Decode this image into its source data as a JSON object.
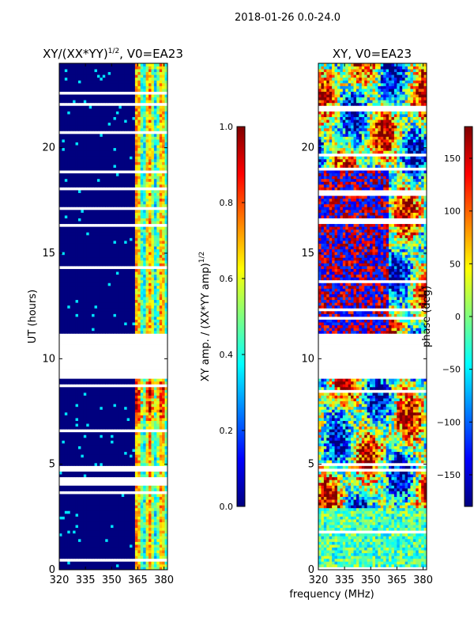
{
  "suptitle": "2018-01-26 0.0-24.0",
  "colors": {
    "jet": [
      "#00007f",
      "#0000ff",
      "#007fff",
      "#00ffff",
      "#7fff7f",
      "#ffff00",
      "#ff7f00",
      "#ff0000",
      "#7f0000"
    ],
    "blank": "#ffffff",
    "frame": "#000000"
  },
  "chart_data": [
    {
      "type": "heatmap",
      "title_main": "XY/(XX*YY)",
      "title_sup": "1/2",
      "title_rest": ", V0=EA23",
      "xlabel": "",
      "ylabel": "UT (hours)",
      "xlim": [
        320,
        382
      ],
      "ylim": [
        0,
        24
      ],
      "xticks": [
        320,
        335,
        350,
        365,
        380
      ],
      "yticks": [
        0,
        5,
        10,
        15,
        20
      ],
      "flagged_gap_hours": [
        9.1,
        11.2
      ],
      "colorbar": {
        "label_main": "XY amp. / (XX*YY amp)",
        "label_sup": "1/2",
        "range": [
          0.0,
          1.0
        ],
        "ticks": [
          "0.0",
          "0.2",
          "0.4",
          "0.6",
          "0.8",
          "1.0"
        ],
        "tick_values": [
          0.0,
          0.2,
          0.4,
          0.6,
          0.8,
          1.0
        ]
      }
    },
    {
      "type": "heatmap",
      "title": "XY, V0=EA23",
      "xlabel": "frequency (MHz)",
      "ylabel": "",
      "xlim": [
        320,
        382
      ],
      "ylim": [
        0,
        24
      ],
      "xticks": [
        320,
        335,
        350,
        365,
        380
      ],
      "yticks": [
        0,
        5,
        10,
        15,
        20
      ],
      "flagged_gap_hours": [
        9.1,
        11.2
      ],
      "colorbar": {
        "label": "phase (deg)",
        "range": [
          -180,
          180
        ],
        "ticks": [
          "150",
          "100",
          "50",
          "0",
          "−50",
          "−100",
          "−150"
        ],
        "tick_values": [
          150,
          100,
          50,
          0,
          -50,
          -100,
          -150
        ]
      }
    }
  ]
}
